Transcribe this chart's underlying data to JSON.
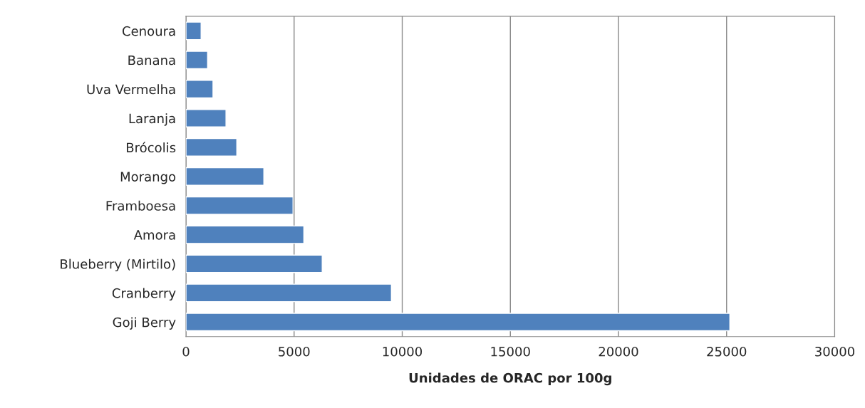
{
  "chart_data": {
    "type": "bar",
    "orientation": "horizontal",
    "xlabel": "Unidades de ORAC por 100g",
    "categories": [
      "Cenoura",
      "Banana",
      "Uva Vermelha",
      "Laranja",
      "Brócolis",
      "Morango",
      "Framboesa",
      "Amora",
      "Blueberry (Mirtilo)",
      "Cranberry",
      "Goji Berry"
    ],
    "values": [
      700,
      1000,
      1250,
      1850,
      2350,
      3600,
      4950,
      5450,
      6300,
      9500,
      25150
    ],
    "color": "#4f81bd",
    "xlim": [
      0,
      30000
    ],
    "xticks": [
      0,
      5000,
      10000,
      15000,
      20000,
      25000,
      30000
    ],
    "grid": "x"
  }
}
